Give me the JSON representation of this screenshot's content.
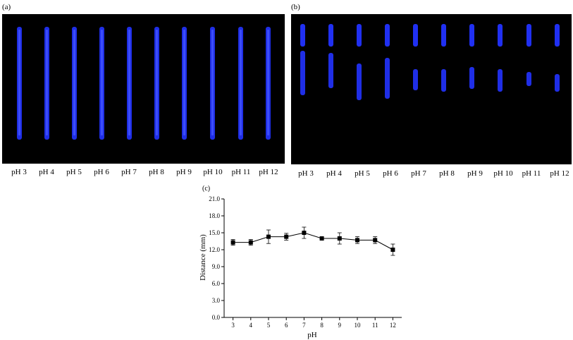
{
  "panels": {
    "a": {
      "label": "(a)",
      "lanes": [
        "pH 3",
        "pH 4",
        "pH 5",
        "pH 6",
        "pH 7",
        "pH 8",
        "pH 9",
        "pH 10",
        "pH 11",
        "pH 12"
      ]
    },
    "b": {
      "label": "(b)",
      "lanes": [
        "pH 3",
        "pH 4",
        "pH 5",
        "pH 6",
        "pH 7",
        "pH 8",
        "pH 9",
        "pH 10",
        "pH 11",
        "pH 12"
      ]
    },
    "c": {
      "label": "(c)"
    }
  },
  "colors": {
    "plate_background": "#000000",
    "band": "#2233ff",
    "band_core": "#4455ff",
    "line": "#000000"
  },
  "chart_data": {
    "type": "line",
    "xlabel": "pH",
    "ylabel": "Distance (mm)",
    "xlim": [
      2.5,
      12.5
    ],
    "ylim": [
      0,
      21
    ],
    "x_ticks": [
      "3",
      "4",
      "5",
      "6",
      "7",
      "8",
      "9",
      "10",
      "11",
      "12"
    ],
    "y_ticks": [
      "0.0",
      "3.0",
      "6.0",
      "9.0",
      "12.0",
      "15.0",
      "18.0",
      "21.0"
    ],
    "marker": "square",
    "series": [
      {
        "x": [
          3,
          4,
          5,
          6,
          7,
          8,
          9,
          10,
          11,
          12
        ],
        "values": [
          13.3,
          13.3,
          14.3,
          14.3,
          15.0,
          14.0,
          14.0,
          13.7,
          13.7,
          12.0
        ],
        "error": [
          0.5,
          0.5,
          1.2,
          0.6,
          1.0,
          0.0,
          1.0,
          0.6,
          0.6,
          1.0
        ]
      }
    ]
  }
}
